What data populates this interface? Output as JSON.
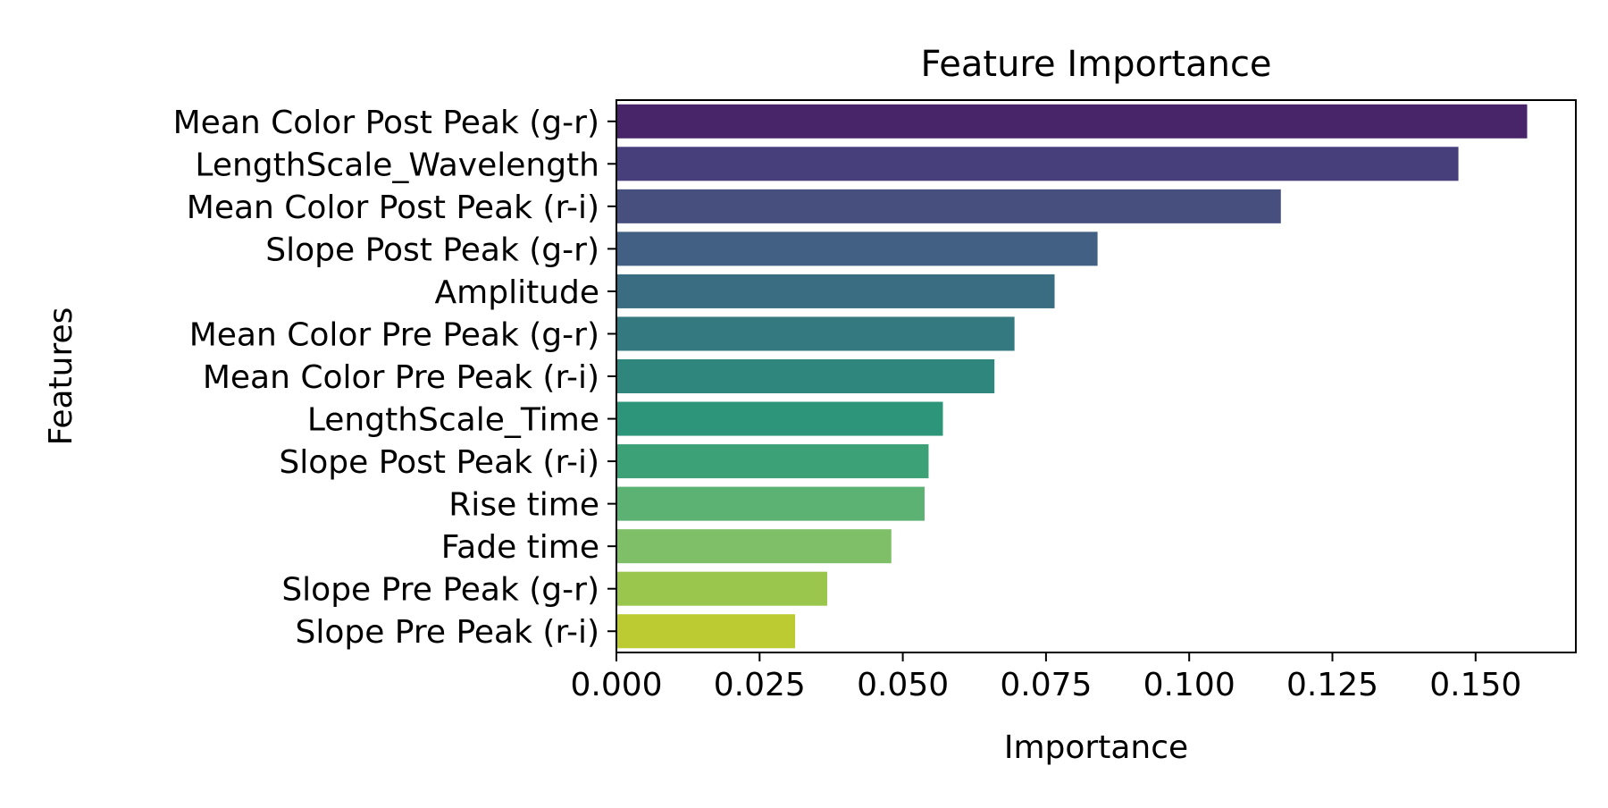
{
  "chart_data": {
    "type": "bar",
    "orientation": "horizontal",
    "title": "Feature Importance",
    "xlabel": "Importance",
    "ylabel": "Features",
    "categories": [
      "Mean Color Post Peak (g-r)",
      "LengthScale_Wavelength",
      "Mean Color Post Peak (r-i)",
      "Slope Post Peak (g-r)",
      "Amplitude",
      "Mean Color Pre Peak (g-r)",
      "Mean Color Pre Peak (r-i)",
      "LengthScale_Time",
      "Slope Post Peak (r-i)",
      "Rise time",
      "Fade time",
      "Slope Pre Peak (g-r)",
      "Slope Pre Peak (r-i)"
    ],
    "values": [
      0.159,
      0.147,
      0.116,
      0.084,
      0.0765,
      0.0695,
      0.066,
      0.057,
      0.0545,
      0.0538,
      0.048,
      0.0368,
      0.0312
    ],
    "colors": [
      "#482468",
      "#473e7c",
      "#474f7f",
      "#416084",
      "#3a6d82",
      "#33797f",
      "#2e867c",
      "#2d957a",
      "#3da177",
      "#5cb272",
      "#7ebf67",
      "#9ac64e",
      "#bdcb32"
    ],
    "xlim": [
      0,
      0.1675
    ],
    "xticks": [
      0.0,
      0.025,
      0.05,
      0.075,
      0.1,
      0.125,
      0.15
    ],
    "xtick_labels": [
      "0.000",
      "0.025",
      "0.050",
      "0.075",
      "0.100",
      "0.125",
      "0.150"
    ],
    "grid": false,
    "legend": "none"
  }
}
